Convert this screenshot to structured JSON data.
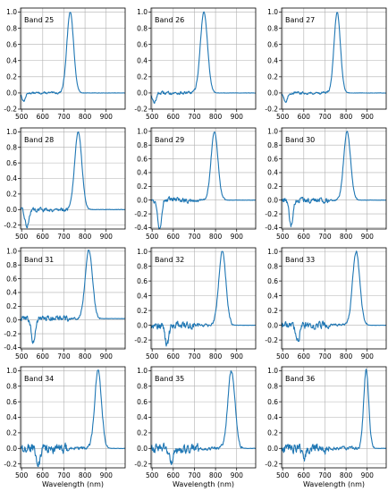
{
  "figure": {
    "line_color": "#1f77b4",
    "x_tick_labels": [
      "500",
      "600",
      "700",
      "800",
      "900"
    ]
  },
  "chart_data": [
    {
      "type": "line",
      "band_label": "Band 25",
      "xlim": [
        495,
        990
      ],
      "ylim": [
        -0.2,
        1.05
      ],
      "xticks": [
        500,
        600,
        700,
        800,
        900
      ],
      "yticks": [
        -0.2,
        0,
        0.2,
        0.4,
        0.6,
        0.8,
        1.0
      ],
      "ytick_labels": [
        "-0.2",
        "0.0",
        "0.2",
        "0.4",
        "0.6",
        "0.8",
        "1.0"
      ],
      "xlabel": "",
      "grid": true,
      "peak": 730,
      "width": 16,
      "dip_center": 510,
      "dip_depth": -0.1,
      "dip_width": 8,
      "noise_level": 0.01,
      "baseline": 0.0
    },
    {
      "type": "line",
      "band_label": "Band 26",
      "xlim": [
        495,
        990
      ],
      "ylim": [
        -0.2,
        1.05
      ],
      "xticks": [
        500,
        600,
        700,
        800,
        900
      ],
      "yticks": [
        -0.2,
        0,
        0.2,
        0.4,
        0.6,
        0.8,
        1.0
      ],
      "ytick_labels": [
        "-0.2",
        "0.0",
        "0.2",
        "0.4",
        "0.6",
        "0.8",
        "1.0"
      ],
      "xlabel": "",
      "grid": true,
      "peak": 745,
      "width": 17,
      "dip_center": 510,
      "dip_depth": -0.13,
      "dip_width": 8,
      "noise_level": 0.015,
      "baseline": 0.0
    },
    {
      "type": "line",
      "band_label": "Band 27",
      "xlim": [
        495,
        990
      ],
      "ylim": [
        -0.2,
        1.05
      ],
      "xticks": [
        500,
        600,
        700,
        800,
        900
      ],
      "yticks": [
        -0.2,
        0,
        0.2,
        0.4,
        0.6,
        0.8,
        1.0
      ],
      "ytick_labels": [
        "-0.2",
        "0.0",
        "0.2",
        "0.4",
        "0.6",
        "0.8",
        "1.0"
      ],
      "xlabel": "",
      "grid": true,
      "peak": 758,
      "width": 15,
      "dip_center": 515,
      "dip_depth": -0.12,
      "dip_width": 8,
      "noise_level": 0.012,
      "baseline": 0.0
    },
    {
      "type": "line",
      "band_label": "Band 28",
      "xlim": [
        495,
        990
      ],
      "ylim": [
        -0.25,
        1.05
      ],
      "xticks": [
        500,
        600,
        700,
        800,
        900
      ],
      "yticks": [
        -0.2,
        0,
        0.2,
        0.4,
        0.6,
        0.8,
        1.0
      ],
      "ytick_labels": [
        "-0.2",
        "0.0",
        "0.2",
        "0.4",
        "0.6",
        "0.8",
        "1.0"
      ],
      "xlabel": "",
      "grid": true,
      "peak": 768,
      "width": 17,
      "dip_center": 525,
      "dip_depth": -0.22,
      "dip_width": 9,
      "noise_level": 0.02,
      "baseline": 0.0
    },
    {
      "type": "line",
      "band_label": "Band 29",
      "xlim": [
        495,
        990
      ],
      "ylim": [
        -0.42,
        1.05
      ],
      "xticks": [
        500,
        600,
        700,
        800,
        900
      ],
      "yticks": [
        -0.4,
        -0.2,
        0,
        0.2,
        0.4,
        0.6,
        0.8,
        1.0
      ],
      "ytick_labels": [
        "-0.4",
        "-0.2",
        "0.0",
        "0.2",
        "0.4",
        "0.6",
        "0.8",
        "1.0"
      ],
      "xlabel": "",
      "grid": true,
      "peak": 795,
      "width": 16,
      "dip_center": 535,
      "dip_depth": -0.4,
      "dip_width": 9,
      "noise_level": 0.03,
      "baseline": 0.0
    },
    {
      "type": "line",
      "band_label": "Band 30",
      "xlim": [
        495,
        990
      ],
      "ylim": [
        -0.42,
        1.05
      ],
      "xticks": [
        500,
        600,
        700,
        800,
        900
      ],
      "yticks": [
        -0.4,
        -0.2,
        0,
        0.2,
        0.4,
        0.6,
        0.8,
        1.0
      ],
      "ytick_labels": [
        "-0.4",
        "-0.2",
        "0.0",
        "0.2",
        "0.4",
        "0.6",
        "0.8",
        "1.0"
      ],
      "xlabel": "",
      "grid": true,
      "peak": 805,
      "width": 16,
      "dip_center": 540,
      "dip_depth": -0.38,
      "dip_width": 9,
      "noise_level": 0.03,
      "baseline": 0.0
    },
    {
      "type": "line",
      "band_label": "Band 31",
      "xlim": [
        495,
        990
      ],
      "ylim": [
        -0.42,
        1.05
      ],
      "xticks": [
        500,
        600,
        700,
        800,
        900
      ],
      "yticks": [
        -0.4,
        -0.2,
        0,
        0.2,
        0.4,
        0.6,
        0.8,
        1.0
      ],
      "ytick_labels": [
        "-0.4",
        "-0.2",
        "0.0",
        "0.2",
        "0.4",
        "0.6",
        "0.8",
        "1.0"
      ],
      "xlabel": "",
      "grid": true,
      "peak": 818,
      "width": 17,
      "dip_center": 555,
      "dip_depth": -0.35,
      "dip_width": 9,
      "noise_level": 0.035,
      "baseline": 0.02
    },
    {
      "type": "line",
      "band_label": "Band 32",
      "xlim": [
        495,
        990
      ],
      "ylim": [
        -0.32,
        1.05
      ],
      "xticks": [
        500,
        600,
        700,
        800,
        900
      ],
      "yticks": [
        -0.2,
        0,
        0.2,
        0.4,
        0.6,
        0.8,
        1.0
      ],
      "ytick_labels": [
        "-0.2",
        "0.0",
        "0.2",
        "0.4",
        "0.6",
        "0.8",
        "1.0"
      ],
      "xlabel": "",
      "grid": true,
      "peak": 832,
      "width": 17,
      "dip_center": 570,
      "dip_depth": -0.28,
      "dip_width": 9,
      "noise_level": 0.04,
      "baseline": 0.0
    },
    {
      "type": "line",
      "band_label": "Band 33",
      "xlim": [
        495,
        990
      ],
      "ylim": [
        -0.32,
        1.05
      ],
      "xticks": [
        500,
        600,
        700,
        800,
        900
      ],
      "yticks": [
        -0.2,
        0,
        0.2,
        0.4,
        0.6,
        0.8,
        1.0
      ],
      "ytick_labels": [
        "-0.2",
        "0.0",
        "0.2",
        "0.4",
        "0.6",
        "0.8",
        "1.0"
      ],
      "xlabel": "",
      "grid": true,
      "peak": 848,
      "width": 17,
      "dip_center": 570,
      "dip_depth": -0.22,
      "dip_width": 9,
      "noise_level": 0.04,
      "baseline": 0.0
    },
    {
      "type": "line",
      "band_label": "Band 34",
      "xlim": [
        495,
        990
      ],
      "ylim": [
        -0.25,
        1.05
      ],
      "xticks": [
        500,
        600,
        700,
        800,
        900
      ],
      "yticks": [
        -0.2,
        0,
        0.2,
        0.4,
        0.6,
        0.8,
        1.0
      ],
      "ytick_labels": [
        "-0.2",
        "0.0",
        "0.2",
        "0.4",
        "0.6",
        "0.8",
        "1.0"
      ],
      "xlabel": "Wavelength (nm)",
      "grid": true,
      "peak": 862,
      "width": 16,
      "dip_center": 580,
      "dip_depth": -0.2,
      "dip_width": 9,
      "noise_level": 0.05,
      "baseline": 0.0
    },
    {
      "type": "line",
      "band_label": "Band 35",
      "xlim": [
        495,
        990
      ],
      "ylim": [
        -0.25,
        1.05
      ],
      "xticks": [
        500,
        600,
        700,
        800,
        900
      ],
      "yticks": [
        -0.2,
        0,
        0.2,
        0.4,
        0.6,
        0.8,
        1.0
      ],
      "ytick_labels": [
        "-0.2",
        "0.0",
        "0.2",
        "0.4",
        "0.6",
        "0.8",
        "1.0"
      ],
      "xlabel": "Wavelength (nm)",
      "grid": true,
      "peak": 875,
      "width": 17,
      "dip_center": 590,
      "dip_depth": -0.18,
      "dip_width": 9,
      "noise_level": 0.05,
      "baseline": 0.0
    },
    {
      "type": "line",
      "band_label": "Band 36",
      "xlim": [
        495,
        990
      ],
      "ylim": [
        -0.25,
        1.05
      ],
      "xticks": [
        500,
        600,
        700,
        800,
        900
      ],
      "yticks": [
        -0.2,
        0,
        0.2,
        0.4,
        0.6,
        0.8,
        1.0
      ],
      "ytick_labels": [
        "-0.2",
        "0.0",
        "0.2",
        "0.4",
        "0.6",
        "0.8",
        "1.0"
      ],
      "xlabel": "Wavelength (nm)",
      "grid": true,
      "peak": 895,
      "width": 12,
      "dip_center": 600,
      "dip_depth": -0.15,
      "dip_width": 9,
      "noise_level": 0.05,
      "baseline": 0.0
    }
  ]
}
